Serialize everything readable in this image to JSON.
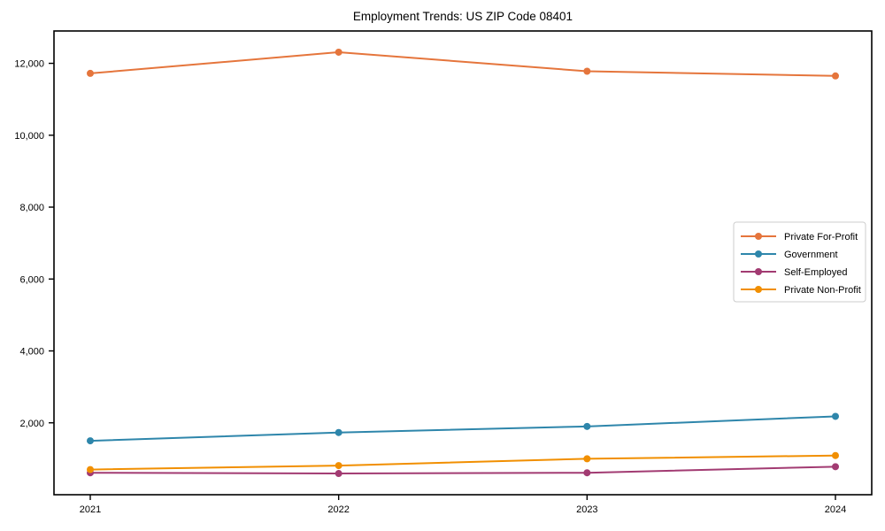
{
  "figure": {
    "title": "Employment Trends: US ZIP Code 08401",
    "background": "#ffffff"
  },
  "chart_data": {
    "type": "line",
    "title": "Employment Trends: US ZIP Code 08401",
    "xlabel": "",
    "ylabel": "",
    "x": [
      2021,
      2022,
      2023,
      2024
    ],
    "x_tick_labels": [
      "2021",
      "2022",
      "2023",
      "2024"
    ],
    "series": [
      {
        "name": "Private For-Profit",
        "color": "#E5753C",
        "values": [
          11720,
          12310,
          11780,
          11650
        ]
      },
      {
        "name": "Government",
        "color": "#2E86AB",
        "values": [
          1500,
          1730,
          1900,
          2180
        ]
      },
      {
        "name": "Self-Employed",
        "color": "#A23B72",
        "values": [
          610,
          590,
          610,
          780
        ]
      },
      {
        "name": "Private Non-Profit",
        "color": "#F18F01",
        "values": [
          700,
          810,
          1000,
          1090
        ]
      }
    ],
    "ylim": [
      0,
      12900
    ],
    "yticks": [
      2000,
      4000,
      6000,
      8000,
      10000,
      12000
    ],
    "ytick_labels": [
      "2,000",
      "4,000",
      "6,000",
      "8,000",
      "10,000",
      "12,000"
    ],
    "grid": false,
    "legend": {
      "position": "center-right",
      "entries": [
        "Private For-Profit",
        "Government",
        "Self-Employed",
        "Private Non-Profit"
      ]
    },
    "marker": "circle",
    "line_width": 2,
    "axis_color": "#000000",
    "legend_border_color": "#cccccc",
    "text_color": "#000000"
  }
}
